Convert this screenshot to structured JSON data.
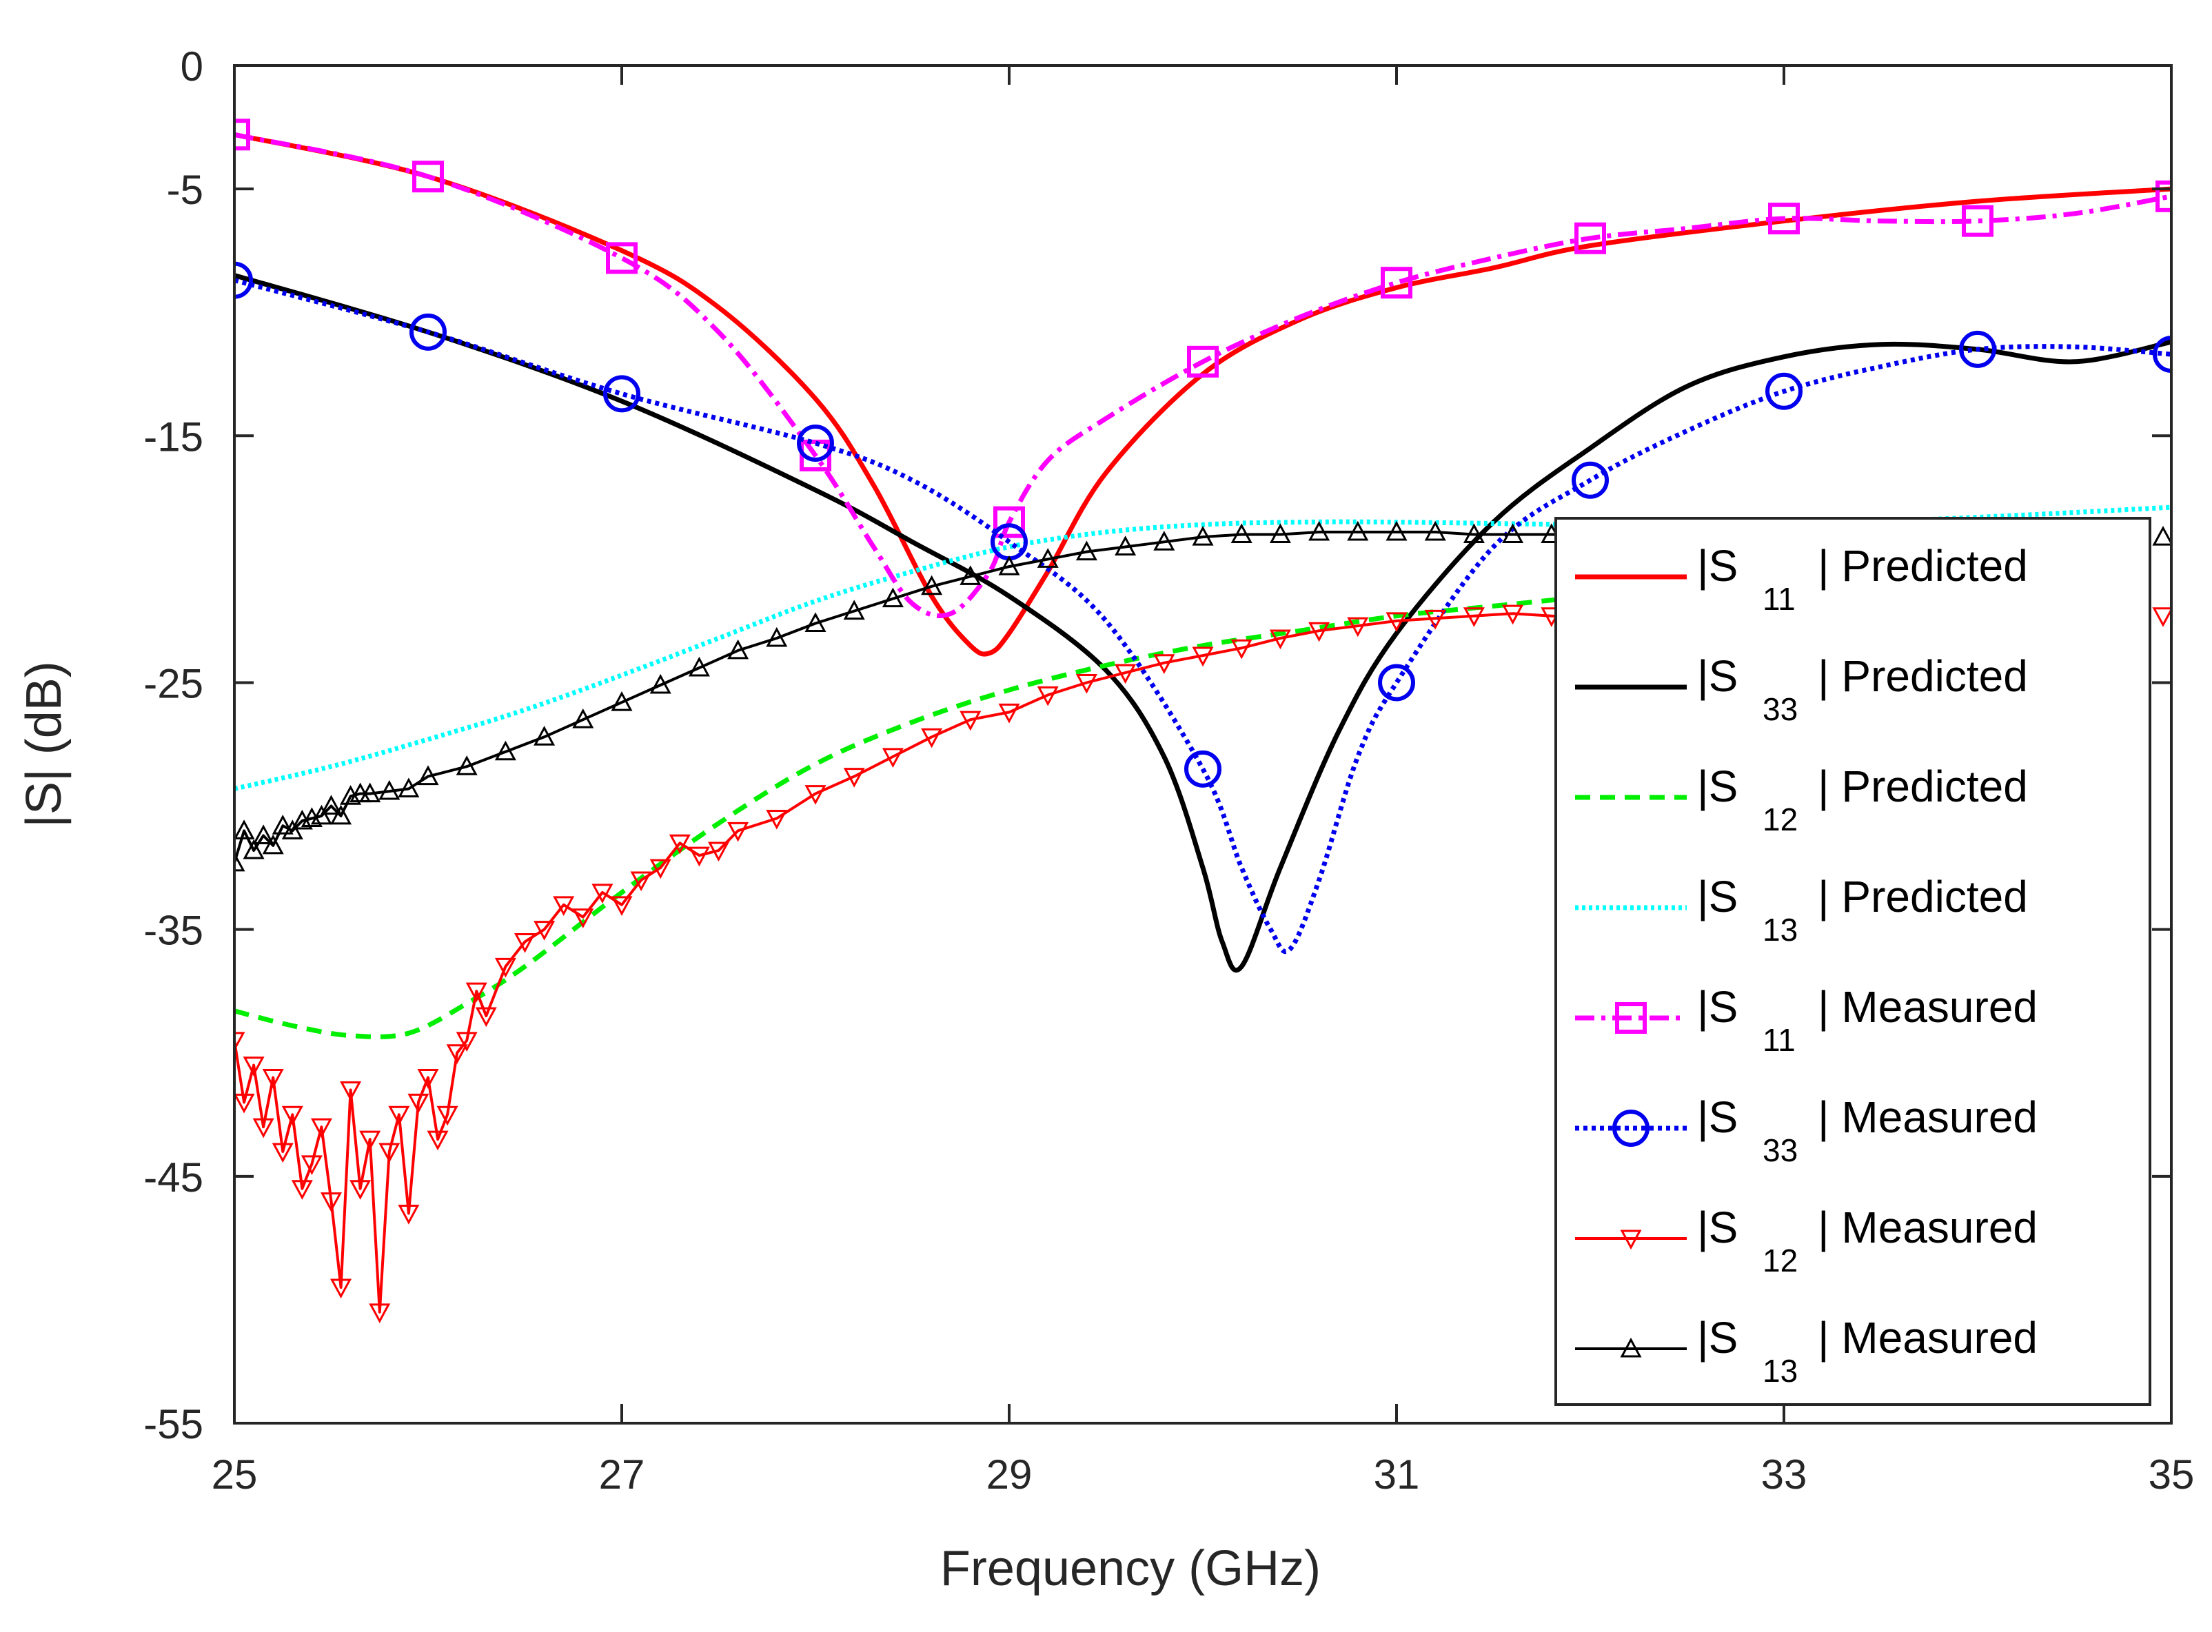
{
  "chart_data": {
    "type": "line",
    "title": "",
    "xlabel": "Frequency (GHz)",
    "ylabel": "|S| (dB)",
    "xlim": [
      25,
      35
    ],
    "ylim": [
      -55,
      0
    ],
    "xticks": [
      25,
      27,
      29,
      31,
      33,
      35
    ],
    "yticks": [
      0,
      -5,
      -15,
      -25,
      -35,
      -45,
      -55
    ],
    "ytick_labels": [
      "0",
      "-5",
      "-15",
      "-25",
      "-35",
      "-45",
      "-55"
    ],
    "grid": false,
    "legend_position": "right",
    "series": [
      {
        "name": "|S11| Predicted",
        "legend_main": "|S",
        "legend_sub": "11",
        "legend_suffix": "| Predicted",
        "color": "#ff0000",
        "dash": "",
        "marker": "none",
        "x": [
          25,
          26,
          27,
          27.5,
          28,
          28.3,
          28.6,
          28.8,
          28.9,
          29.0,
          29.2,
          29.5,
          30,
          30.5,
          31,
          31.5,
          32,
          33,
          34,
          35
        ],
        "y": [
          -2.8,
          -4.5,
          -7.5,
          -9.8,
          -13.5,
          -17,
          -21.5,
          -23.5,
          -23.8,
          -23,
          -20.5,
          -16.5,
          -12.5,
          -10.3,
          -9,
          -8.2,
          -7.3,
          -6.3,
          -5.5,
          -5.0
        ]
      },
      {
        "name": "|S33| Predicted",
        "legend_main": "|S",
        "legend_sub": "33",
        "legend_suffix": "| Predicted",
        "color": "#000000",
        "dash": "",
        "marker": "none",
        "x": [
          25,
          26,
          27,
          28,
          28.5,
          29,
          29.5,
          29.8,
          30.0,
          30.1,
          30.2,
          30.4,
          30.7,
          31,
          31.5,
          32,
          32.5,
          33,
          33.5,
          34,
          34.5,
          35
        ],
        "y": [
          -8.5,
          -10.8,
          -13.6,
          -17.2,
          -19.3,
          -21.5,
          -24.5,
          -28,
          -32.5,
          -35.5,
          -36.5,
          -32.5,
          -27,
          -23,
          -18.5,
          -15.5,
          -13,
          -11.8,
          -11.3,
          -11.5,
          -12.0,
          -11.2
        ]
      },
      {
        "name": "|S12| Predicted",
        "legend_main": "|S",
        "legend_sub": "12",
        "legend_suffix": "| Predicted",
        "color": "#00ee00",
        "dash": "22 14",
        "marker": "none",
        "x": [
          25,
          25.3,
          25.6,
          25.9,
          26.2,
          26.5,
          27,
          27.5,
          28,
          28.5,
          29,
          29.5,
          30,
          30.5,
          31,
          31.5,
          32
        ],
        "y": [
          -38.3,
          -38.9,
          -39.3,
          -39.2,
          -38.0,
          -36.5,
          -33.5,
          -30.7,
          -28.3,
          -26.6,
          -25.3,
          -24.3,
          -23.5,
          -22.9,
          -22.3,
          -21.9,
          -21.5
        ]
      },
      {
        "name": "|S13| Predicted",
        "legend_main": "|S",
        "legend_sub": "13",
        "legend_suffix": "| Predicted",
        "color": "#00ffff",
        "dash": "5 5",
        "marker": "none",
        "x": [
          25,
          25.5,
          26,
          26.5,
          27,
          27.5,
          28,
          28.5,
          29,
          29.5,
          30,
          30.5,
          31,
          32,
          33,
          34,
          35
        ],
        "y": [
          -29.3,
          -28.4,
          -27.3,
          -26.1,
          -24.7,
          -23.2,
          -21.7,
          -20.5,
          -19.5,
          -18.9,
          -18.6,
          -18.5,
          -18.5,
          -18.6,
          -18.6,
          -18.3,
          -17.9
        ]
      },
      {
        "name": "|S11| Measured",
        "legend_main": "|S",
        "legend_sub": "11",
        "legend_suffix": "| Measured",
        "color": "#ff00ff",
        "dash": "28 10 6 10",
        "marker": "square",
        "marker_x": [
          25,
          26,
          27,
          28,
          29,
          30,
          31,
          32,
          33,
          34,
          35
        ],
        "x": [
          25,
          26,
          27,
          27.5,
          28,
          28.3,
          28.5,
          28.7,
          28.9,
          29.0,
          29.2,
          29.5,
          30,
          30.5,
          31,
          31.5,
          32,
          32.5,
          33,
          33.5,
          34,
          34.5,
          35
        ],
        "y": [
          -2.8,
          -4.5,
          -7.8,
          -10.8,
          -15.8,
          -19.5,
          -21.8,
          -22.2,
          -20.5,
          -18.5,
          -16.0,
          -14.3,
          -12.0,
          -10.2,
          -8.8,
          -7.8,
          -7.0,
          -6.6,
          -6.2,
          -6.3,
          -6.3,
          -6.0,
          -5.3
        ]
      },
      {
        "name": "|S33| Measured",
        "legend_main": "|S",
        "legend_sub": "33",
        "legend_suffix": "| Measured",
        "color": "#0000ee",
        "dash": "6 6",
        "marker": "circle",
        "marker_x": [
          25,
          26,
          27,
          28,
          29,
          30,
          31,
          32,
          33,
          34,
          35
        ],
        "x": [
          25,
          26,
          27,
          28,
          28.5,
          29,
          29.5,
          30,
          30.2,
          30.35,
          30.45,
          30.6,
          30.8,
          31,
          31.5,
          32,
          32.5,
          33,
          33.5,
          34,
          34.5,
          35
        ],
        "y": [
          -8.7,
          -10.8,
          -13.3,
          -15.3,
          -16.8,
          -19.3,
          -22.5,
          -28.5,
          -32.5,
          -35.0,
          -35.8,
          -33,
          -28,
          -25,
          -19.5,
          -16.8,
          -14.8,
          -13.2,
          -12.2,
          -11.5,
          -11.4,
          -11.7
        ]
      },
      {
        "name": "|S12| Measured",
        "legend_main": "|S",
        "legend_sub": "12",
        "legend_suffix": "| Measured",
        "color": "#ff0000",
        "dash": "",
        "marker": "triangle-down",
        "x": [
          25,
          25.05,
          25.1,
          25.15,
          25.2,
          25.25,
          25.3,
          25.35,
          25.4,
          25.45,
          25.5,
          25.55,
          25.6,
          25.65,
          25.7,
          25.75,
          25.8,
          25.85,
          25.9,
          25.95,
          26.0,
          26.05,
          26.1,
          26.15,
          26.2,
          26.25,
          26.3,
          26.4,
          26.5,
          26.6,
          26.7,
          26.8,
          26.9,
          27.0,
          27.1,
          27.2,
          27.3,
          27.4,
          27.5,
          27.6,
          27.8,
          28.0,
          28.2,
          28.4,
          28.6,
          28.8,
          29.0,
          29.2,
          29.4,
          29.6,
          29.8,
          30.0,
          30.2,
          30.4,
          30.6,
          30.8,
          31.0,
          31.2,
          31.4,
          31.6,
          31.8,
          32.0
        ],
        "y": [
          -39.5,
          -42,
          -40.5,
          -43,
          -41,
          -44,
          -42.5,
          -45.5,
          -44.5,
          -43,
          -46,
          -49.5,
          -41.5,
          -45.5,
          -43.5,
          -50.5,
          -44,
          -42.5,
          -46.5,
          -42,
          -41,
          -43.5,
          -42.5,
          -40,
          -39.5,
          -37.5,
          -38.5,
          -36.5,
          -35.5,
          -35,
          -34,
          -34.5,
          -33.5,
          -34,
          -33,
          -32.5,
          -31.5,
          -32,
          -31.8,
          -31.0,
          -30.5,
          -29.5,
          -28.8,
          -28.0,
          -27.2,
          -26.5,
          -26.2,
          -25.5,
          -25.0,
          -24.6,
          -24.2,
          -23.9,
          -23.6,
          -23.2,
          -22.9,
          -22.7,
          -22.5,
          -22.4,
          -22.3,
          -22.2,
          -22.3,
          -22.4
        ]
      },
      {
        "name": "|S13| Measured",
        "legend_main": "|S",
        "legend_sub": "13",
        "legend_suffix": "| Measured",
        "color": "#000000",
        "dash": "",
        "marker": "triangle-up",
        "x": [
          25,
          25.05,
          25.1,
          25.15,
          25.2,
          25.25,
          25.3,
          25.35,
          25.4,
          25.45,
          25.5,
          25.55,
          25.6,
          25.65,
          25.7,
          25.8,
          25.9,
          26.0,
          26.2,
          26.4,
          26.6,
          26.8,
          27.0,
          27.2,
          27.4,
          27.6,
          27.8,
          28.0,
          28.2,
          28.4,
          28.6,
          28.8,
          29.0,
          29.2,
          29.4,
          29.6,
          29.8,
          30.0,
          30.2,
          30.4,
          30.6,
          30.8,
          31.0,
          31.2,
          31.4,
          31.6,
          31.8,
          32.0
        ],
        "y": [
          -32.3,
          -31.0,
          -31.8,
          -31.2,
          -31.6,
          -30.8,
          -31.0,
          -30.6,
          -30.5,
          -30.4,
          -30.0,
          -30.4,
          -29.6,
          -29.5,
          -29.5,
          -29.4,
          -29.3,
          -28.8,
          -28.4,
          -27.8,
          -27.2,
          -26.5,
          -25.8,
          -25.1,
          -24.4,
          -23.7,
          -23.2,
          -22.6,
          -22.1,
          -21.6,
          -21.1,
          -20.7,
          -20.3,
          -20.0,
          -19.7,
          -19.5,
          -19.3,
          -19.1,
          -19.0,
          -19.0,
          -18.9,
          -18.9,
          -18.9,
          -18.9,
          -19.0,
          -19.0,
          -19.0,
          -19.0
        ]
      }
    ],
    "tail_s12_measured_visible_marker_x": 35,
    "tail_s12_measured_visible_marker_y": -22.3,
    "tail_s13_measured_visible_marker_x": 35,
    "tail_s13_measured_visible_marker_y": -19.1
  }
}
